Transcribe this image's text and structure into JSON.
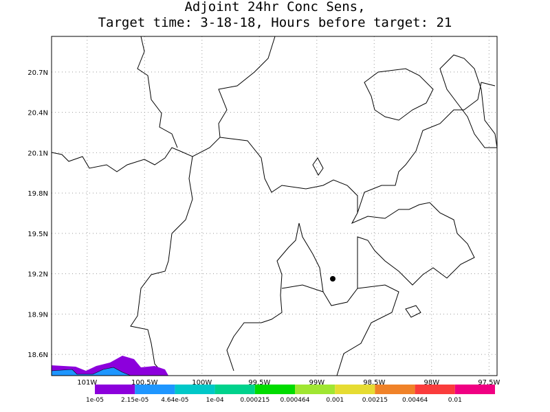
{
  "chart_data": {
    "type": "map",
    "title": "Adjoint 24hr Conc Sens,",
    "subtitle": "Target time: 3-18-18, Hours before target: 21",
    "xlim": [
      -101.31,
      -97.43
    ],
    "ylim": [
      18.442,
      20.965
    ],
    "xticks": [
      {
        "value": -101,
        "label": "101W"
      },
      {
        "value": -100.5,
        "label": "100.5W"
      },
      {
        "value": -100,
        "label": "100W"
      },
      {
        "value": -99.5,
        "label": "99.5W"
      },
      {
        "value": -99,
        "label": "99W"
      },
      {
        "value": -98.5,
        "label": "98.5W"
      },
      {
        "value": -98,
        "label": "98W"
      },
      {
        "value": -97.5,
        "label": "97.5W"
      }
    ],
    "yticks": [
      {
        "value": 18.6,
        "label": "18.6N"
      },
      {
        "value": 18.9,
        "label": "18.9N"
      },
      {
        "value": 19.2,
        "label": "19.2N"
      },
      {
        "value": 19.5,
        "label": "19.5N"
      },
      {
        "value": 19.8,
        "label": "19.8N"
      },
      {
        "value": 20.1,
        "label": "20.1N"
      },
      {
        "value": 20.4,
        "label": "20.4N"
      },
      {
        "value": 20.7,
        "label": "20.7N"
      }
    ],
    "grid": true,
    "colorbar": {
      "levels": [
        {
          "value": 1e-05,
          "label": "1e-05"
        },
        {
          "value": 2.15e-05,
          "label": "2.15e-05"
        },
        {
          "value": 4.64e-05,
          "label": "4.64e-05"
        },
        {
          "value": 0.0001,
          "label": "1e-04"
        },
        0.000215,
        0.000464,
        0.001,
        0.00215,
        0.00464,
        0.01
      ],
      "colors": [
        "#8c00dc",
        "#1e96ff",
        "#00c8c8",
        "#00d28c",
        "#00dc00",
        "#a0e632",
        "#e6dc32",
        "#f08228",
        "#fa3c3c",
        "#f00082"
      ]
    }
  }
}
